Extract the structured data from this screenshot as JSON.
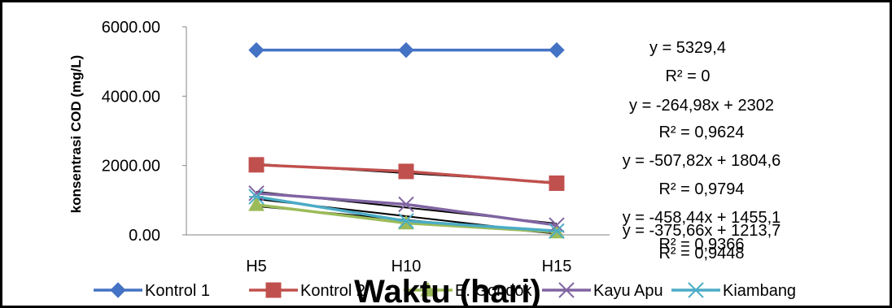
{
  "chart_data": {
    "type": "line",
    "title": "",
    "xlabel": "Waktu (hari)",
    "ylabel": "konsentrasi COD (mg/L)",
    "categories": [
      "H5",
      "H10",
      "H15"
    ],
    "ylim": [
      0,
      6000
    ],
    "yticks": [
      "0.00",
      "2000.00",
      "4000.00",
      "6000.00"
    ],
    "grid": false,
    "legend_position": "bottom",
    "series": [
      {
        "name": "Kontrol 1",
        "values": [
          5329.4,
          5329.4,
          5329.4
        ],
        "color": "#4472C4",
        "marker": "diamond"
      },
      {
        "name": "Kontrol 2",
        "values": [
          2020,
          1830,
          1490
        ],
        "color": "#C0504D",
        "marker": "square"
      },
      {
        "name": "E. Gondok",
        "values": [
          870,
          340,
          80
        ],
        "color": "#9BBB59",
        "marker": "triangle"
      },
      {
        "name": "Kayu Apu",
        "values": [
          1200,
          880,
          280
        ],
        "color": "#8064A2",
        "marker": "x"
      },
      {
        "name": "Kiambang",
        "values": [
          1100,
          400,
          110
        ],
        "color": "#4BACC6",
        "marker": "star"
      }
    ],
    "trendline_color": "#000000",
    "annotations": [
      "y = 5329,4",
      "R² = 0",
      "y = -264,98x + 2302",
      "R² = 0,9624",
      "y = -507,82x + 1804,6",
      "R² = 0,9794",
      "y = -458,44x + 1455,1",
      "R² = 0,9366",
      "y = -375,66x + 1213,7",
      "R² = 0,9448"
    ]
  }
}
